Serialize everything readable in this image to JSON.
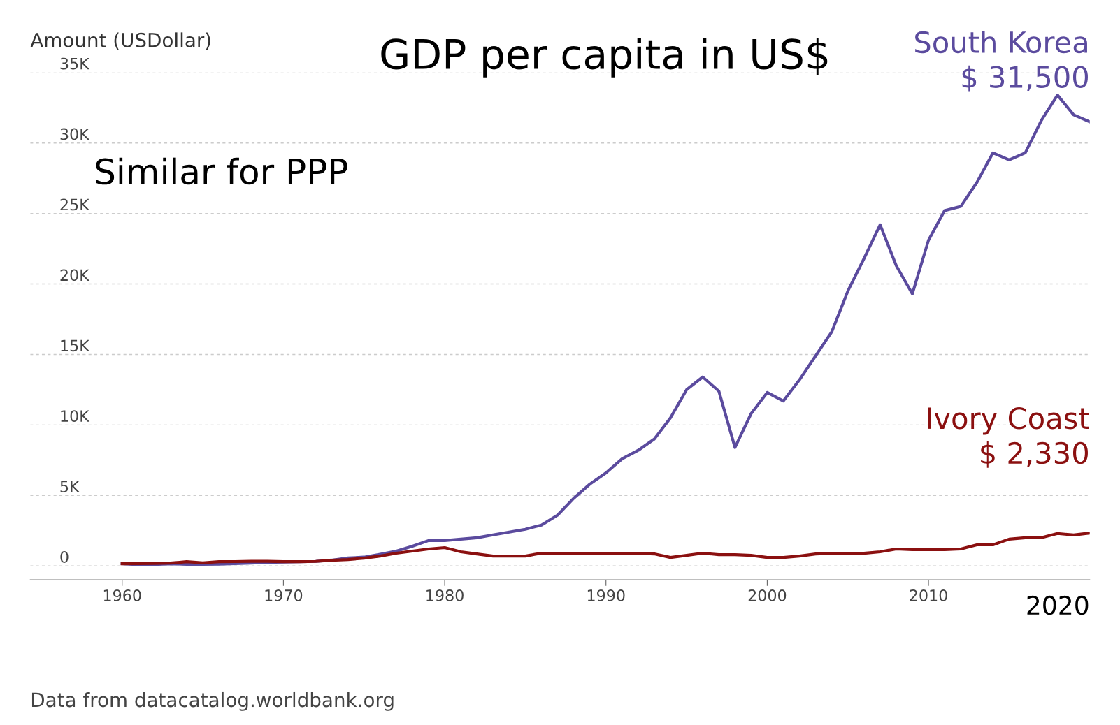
{
  "chart_data": {
    "type": "line",
    "title": "GDP per capita in US$",
    "ylabel": "Amount (USDollar)",
    "x": [
      1960,
      1961,
      1962,
      1963,
      1964,
      1965,
      1966,
      1967,
      1968,
      1969,
      1970,
      1971,
      1972,
      1973,
      1974,
      1975,
      1976,
      1977,
      1978,
      1979,
      1980,
      1981,
      1982,
      1983,
      1984,
      1985,
      1986,
      1987,
      1988,
      1989,
      1990,
      1991,
      1992,
      1993,
      1994,
      1995,
      1996,
      1997,
      1998,
      1999,
      2000,
      2001,
      2002,
      2003,
      2004,
      2005,
      2006,
      2007,
      2008,
      2009,
      2010,
      2011,
      2012,
      2013,
      2014,
      2015,
      2016,
      2017,
      2018,
      2019,
      2020
    ],
    "series": [
      {
        "name": "South Korea",
        "color": "#5b4b9e",
        "value_labels": [
          null,
          null,
          null,
          null,
          null,
          null,
          null,
          null,
          null,
          null,
          null,
          null,
          null,
          null,
          null,
          null,
          null,
          null,
          null,
          null,
          null,
          null,
          null,
          null,
          null,
          null,
          null,
          null,
          null,
          null,
          null,
          null,
          null,
          null,
          null,
          null,
          null,
          null,
          null,
          null,
          null,
          null,
          null,
          null,
          null,
          null,
          null,
          null,
          null,
          null,
          null,
          null,
          null,
          null,
          null,
          null,
          null,
          null,
          null,
          null,
          "$ 31,500"
        ],
        "values": [
          160,
          90,
          100,
          150,
          120,
          110,
          130,
          160,
          200,
          250,
          280,
          300,
          320,
          410,
          560,
          620,
          830,
          1050,
          1400,
          1800,
          1800,
          1900,
          2000,
          2200,
          2400,
          2600,
          2900,
          3600,
          4800,
          5800,
          6600,
          7600,
          8200,
          9000,
          10500,
          12500,
          13400,
          12400,
          8400,
          10800,
          12300,
          11700,
          13200,
          14900,
          16600,
          19500,
          21800,
          24200,
          21300,
          19300,
          23100,
          25200,
          25500,
          27200,
          29300,
          28800,
          29300,
          31600,
          33400,
          32000,
          31500
        ]
      },
      {
        "name": "Ivory Coast",
        "color": "#8b1010",
        "value_labels": [
          null,
          null,
          null,
          null,
          null,
          null,
          null,
          null,
          null,
          null,
          null,
          null,
          null,
          null,
          null,
          null,
          null,
          null,
          null,
          null,
          null,
          null,
          null,
          null,
          null,
          null,
          null,
          null,
          null,
          null,
          null,
          null,
          null,
          null,
          null,
          null,
          null,
          null,
          null,
          null,
          null,
          null,
          null,
          null,
          null,
          null,
          null,
          null,
          null,
          null,
          null,
          null,
          null,
          null,
          null,
          null,
          null,
          null,
          null,
          null,
          "$ 2,330"
        ],
        "values": [
          150,
          160,
          170,
          200,
          300,
          220,
          300,
          310,
          330,
          330,
          300,
          300,
          320,
          400,
          450,
          550,
          700,
          900,
          1050,
          1200,
          1300,
          1000,
          850,
          700,
          700,
          700,
          900,
          900,
          900,
          900,
          900,
          900,
          900,
          850,
          600,
          750,
          900,
          800,
          800,
          750,
          600,
          600,
          700,
          850,
          900,
          900,
          900,
          1000,
          1200,
          1150,
          1150,
          1150,
          1200,
          1500,
          1500,
          1900,
          2000,
          2000,
          2300,
          2200,
          2330
        ]
      }
    ],
    "xlim": [
      1954.3,
      2020
    ],
    "ylim": [
      -1000,
      35000
    ],
    "xticks": [
      1960,
      1970,
      1980,
      1990,
      2000,
      2010
    ],
    "yticks": [
      {
        "value": 0,
        "label": "0"
      },
      {
        "value": 5000,
        "label": "5K"
      },
      {
        "value": 10000,
        "label": "10K"
      },
      {
        "value": 15000,
        "label": "15K"
      },
      {
        "value": 20000,
        "label": "20K"
      },
      {
        "value": 25000,
        "label": "25K"
      },
      {
        "value": 30000,
        "label": "30K"
      },
      {
        "value": 35000,
        "label": "35K"
      }
    ],
    "grid": "y",
    "legend": false,
    "marker": "none",
    "line_style": "solid",
    "annotations": [
      "Similar for PPP",
      "2020",
      "Data from datacatalog.worldbank.org"
    ]
  }
}
